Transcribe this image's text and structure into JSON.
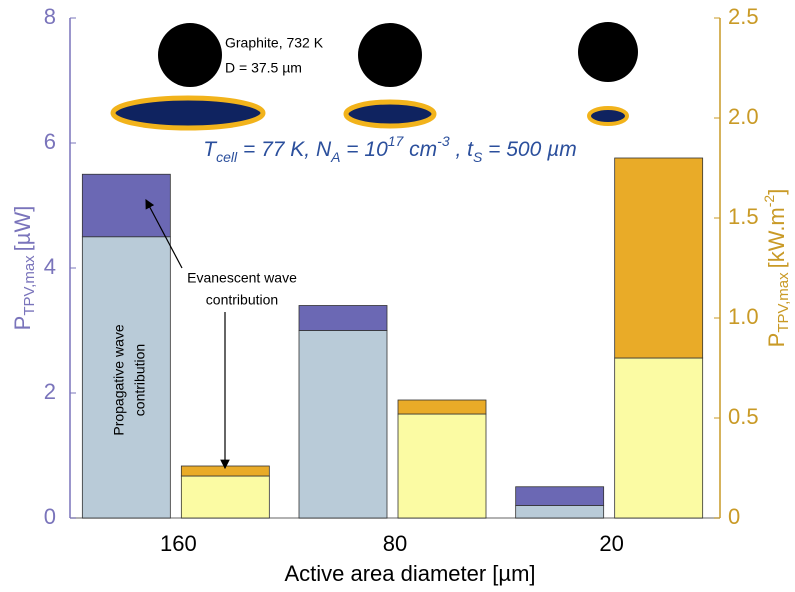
{
  "chart_data": {
    "type": "bar",
    "stacked": true,
    "categories": [
      "160",
      "80",
      "20"
    ],
    "xlabel": "Active area diameter [µm]",
    "ylabel": {
      "main": "P",
      "sub": "TPV,max",
      "unit": "[µW]"
    },
    "y2label": {
      "main": "P",
      "sub": "TPV,max",
      "unit": "[kW.m",
      "sup": "-2",
      "end": "]"
    },
    "ylim": [
      0,
      8
    ],
    "yticks": [
      0,
      2,
      4,
      6,
      8
    ],
    "y2lim": [
      0,
      2.5
    ],
    "y2ticks": [
      0,
      0.5,
      {
        "value": 1,
        "label": "1.0"
      },
      1.5,
      {
        "value": 2,
        "label": "2.0"
      },
      2.5
    ],
    "grid": false,
    "axis_colors": {
      "y": "#7a74bb",
      "y2": "#c99a26"
    },
    "series": [
      {
        "name": "Propagative wave contribution",
        "color": "#b9cbd8",
        "values": [
          4.5,
          3.0,
          0.2
        ]
      },
      {
        "name": "Evanescent wave contribution",
        "color": "#6b68b4",
        "values": [
          1.0,
          0.4,
          0.3
        ]
      },
      {
        "name": "Propagative wave contribution",
        "color": "#fbfba3",
        "values": [
          0.21,
          0.52,
          0.8
        ],
        "axis": "y2"
      },
      {
        "name": "Evanescent wave contribution",
        "color": "#e9ab28",
        "values": [
          0.05,
          0.07,
          1.0
        ],
        "axis": "y2"
      }
    ],
    "annotations": {
      "source": [
        "Graphite, 732 K",
        "D = 37.5 µm"
      ],
      "evanescent": [
        "Evanescent wave",
        "contribution"
      ],
      "propagative": [
        "Propagative wave",
        "contribution"
      ],
      "conditions": [
        {
          "text": "T",
          "style": "normal"
        },
        {
          "text": "cell",
          "style": "sub"
        },
        {
          "text": " = 77 K, N",
          "style": "normal"
        },
        {
          "text": "A",
          "style": "sub"
        },
        {
          "text": " = 10",
          "style": "normal"
        },
        {
          "text": "17",
          "style": "sup"
        },
        {
          "text": " cm",
          "style": "normal"
        },
        {
          "text": "-3",
          "style": "sup"
        },
        {
          "text": " , t",
          "style": "normal"
        },
        {
          "text": "S",
          "style": "sub"
        },
        {
          "text": " = 500 µm",
          "style": "normal"
        }
      ]
    }
  }
}
